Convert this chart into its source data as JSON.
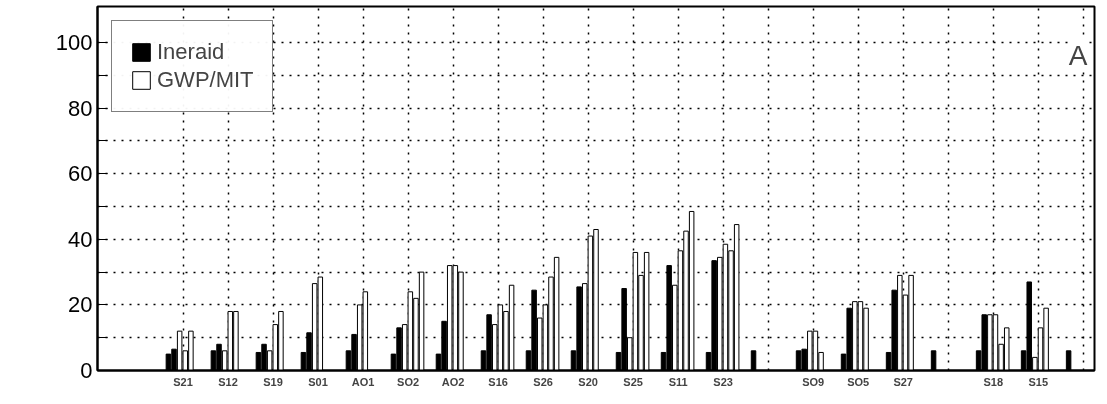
{
  "chart_data": {
    "type": "bar",
    "categories": [
      "S21",
      "S12",
      "S19",
      "S01",
      "AO1",
      "SO2",
      "AO2",
      "S16",
      "S26",
      "S20",
      "S25",
      "S11",
      "S23",
      null,
      "SO9",
      "SO5",
      "S27",
      null,
      "S18",
      "S15",
      null
    ],
    "series": [
      {
        "name": "Ineraid",
        "color": "#000000",
        "values": [
          5,
          6,
          5.5,
          5.5,
          6,
          5,
          5,
          6,
          6,
          6,
          5.5,
          5.5,
          5.5,
          6,
          6,
          5,
          5.5,
          6,
          6,
          6,
          6
        ]
      },
      {
        "color": "#000000",
        "values": [
          6.5,
          8,
          8,
          11.5,
          11,
          13,
          15,
          17,
          24.5,
          25.5,
          25,
          32,
          33.5,
          null,
          6.5,
          19,
          24.5,
          null,
          17,
          27,
          null
        ]
      },
      {
        "name": "GWP/MIT",
        "color": "#ffffff",
        "values": [
          12,
          6,
          6,
          26.5,
          20,
          14,
          32,
          14,
          16,
          26.5,
          10,
          26,
          34.5,
          null,
          12,
          21,
          29,
          null,
          17,
          4,
          null
        ]
      },
      {
        "color": "#ffffff",
        "values": [
          6,
          18,
          14,
          28.5,
          24,
          24,
          32,
          20,
          20,
          41,
          36,
          36.5,
          38.5,
          null,
          12,
          21,
          23,
          null,
          17,
          13,
          null
        ]
      },
      {
        "color": "#ffffff",
        "values": [
          12,
          18,
          18,
          null,
          null,
          22,
          30,
          18,
          28.5,
          43,
          29,
          42.5,
          36.5,
          null,
          5.5,
          19,
          29,
          null,
          8,
          19,
          null
        ]
      },
      {
        "color": "#ffffff",
        "values": [
          null,
          null,
          null,
          null,
          null,
          30,
          null,
          26,
          34.5,
          null,
          36,
          48.5,
          44.5,
          null,
          null,
          null,
          null,
          null,
          13,
          null,
          null
        ]
      }
    ],
    "ylim": [
      0,
      111
    ],
    "yticks": [
      0,
      {
        "value": 10,
        "label": null
      },
      20,
      {
        "value": 30,
        "label": null
      },
      40,
      {
        "value": 50,
        "label": null
      },
      60,
      {
        "value": 70,
        "label": null
      },
      80,
      {
        "value": 90,
        "label": null
      },
      100
    ],
    "grid": true,
    "legend": "top left",
    "annotations": [
      "A"
    ]
  }
}
